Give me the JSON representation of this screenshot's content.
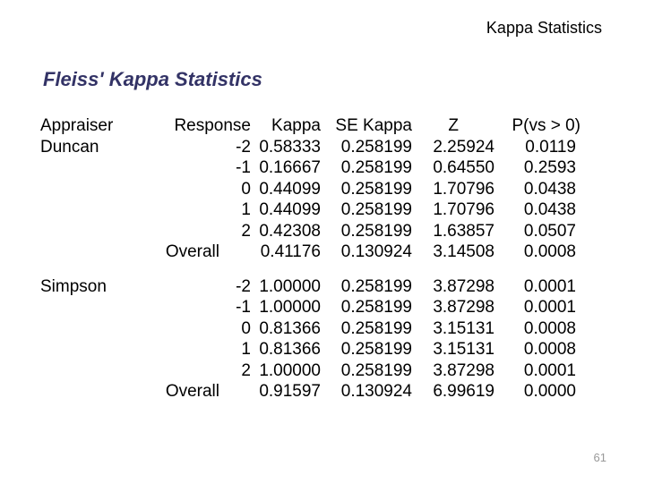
{
  "header": {
    "running_title": "Kappa Statistics"
  },
  "title": "Fleiss' Kappa Statistics",
  "page_number": "61",
  "colors": {
    "background": "#ffffff",
    "title_text": "#333366",
    "body_text": "#000000",
    "page_number_text": "#999999"
  },
  "table": {
    "columns": [
      "Appraiser",
      "Response",
      "Kappa",
      "SE Kappa",
      "Z",
      "P(vs > 0)"
    ],
    "sections": [
      {
        "appraiser": "Duncan",
        "rows": [
          {
            "response": "-2",
            "kappa": "0.58333",
            "se_kappa": "0.258199",
            "z": "2.25924",
            "p": "0.0119"
          },
          {
            "response": "-1",
            "kappa": "0.16667",
            "se_kappa": "0.258199",
            "z": "0.64550",
            "p": "0.2593"
          },
          {
            "response": "0",
            "kappa": "0.44099",
            "se_kappa": "0.258199",
            "z": "1.70796",
            "p": "0.0438"
          },
          {
            "response": "1",
            "kappa": "0.44099",
            "se_kappa": "0.258199",
            "z": "1.70796",
            "p": "0.0438"
          },
          {
            "response": "2",
            "kappa": "0.42308",
            "se_kappa": "0.258199",
            "z": "1.63857",
            "p": "0.0507"
          },
          {
            "response": "Overall",
            "kappa": "0.41176",
            "se_kappa": "0.130924",
            "z": "3.14508",
            "p": "0.0008"
          }
        ]
      },
      {
        "appraiser": "Simpson",
        "rows": [
          {
            "response": "-2",
            "kappa": "1.00000",
            "se_kappa": "0.258199",
            "z": "3.87298",
            "p": "0.0001"
          },
          {
            "response": "-1",
            "kappa": "1.00000",
            "se_kappa": "0.258199",
            "z": "3.87298",
            "p": "0.0001"
          },
          {
            "response": "0",
            "kappa": "0.81366",
            "se_kappa": "0.258199",
            "z": "3.15131",
            "p": "0.0008"
          },
          {
            "response": "1",
            "kappa": "0.81366",
            "se_kappa": "0.258199",
            "z": "3.15131",
            "p": "0.0008"
          },
          {
            "response": "2",
            "kappa": "1.00000",
            "se_kappa": "0.258199",
            "z": "3.87298",
            "p": "0.0001"
          },
          {
            "response": "Overall",
            "kappa": "0.91597",
            "se_kappa": "0.130924",
            "z": "6.99619",
            "p": "0.0000"
          }
        ]
      }
    ]
  }
}
